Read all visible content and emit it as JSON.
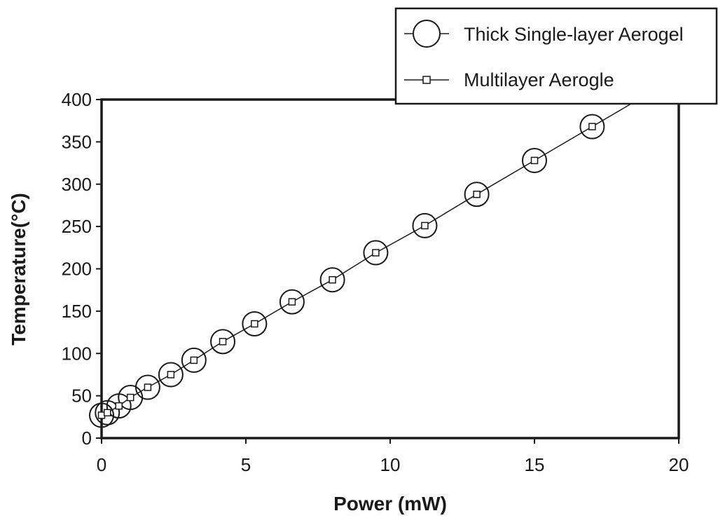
{
  "chart_data": {
    "type": "scatter",
    "title": "",
    "xlabel": "Power (mW)",
    "ylabel": "Temperature(°C)",
    "xlim": [
      0,
      20
    ],
    "ylim": [
      0,
      400
    ],
    "xticks": [
      0,
      5,
      10,
      15,
      20
    ],
    "yticks": [
      0,
      50,
      100,
      150,
      200,
      250,
      300,
      350,
      400
    ],
    "grid": false,
    "legend_position": "top-right",
    "series": [
      {
        "name": "Thick Single-layer Aerogel",
        "marker": "large-circle",
        "line": false,
        "color": "#1a1a1a",
        "x": [
          0.0,
          0.2,
          0.6,
          1.0,
          1.6,
          2.4,
          3.2,
          4.2,
          5.3,
          6.6,
          8.0,
          9.5,
          11.2,
          13.0,
          15.0,
          17.0
        ],
        "y": [
          27,
          30,
          38,
          48,
          60,
          75,
          92,
          114,
          135,
          161,
          187,
          219,
          251,
          288,
          328,
          368
        ]
      },
      {
        "name": "Multilayer Aerogle",
        "marker": "small-square",
        "line": true,
        "color": "#1a1a1a",
        "x": [
          0.0,
          0.2,
          0.6,
          1.0,
          1.6,
          2.4,
          3.2,
          4.2,
          5.3,
          6.6,
          8.0,
          9.5,
          11.2,
          13.0,
          15.0,
          17.0,
          18.6
        ],
        "y": [
          27,
          30,
          38,
          48,
          60,
          75,
          92,
          114,
          135,
          161,
          187,
          219,
          251,
          288,
          328,
          368,
          400
        ]
      }
    ]
  }
}
